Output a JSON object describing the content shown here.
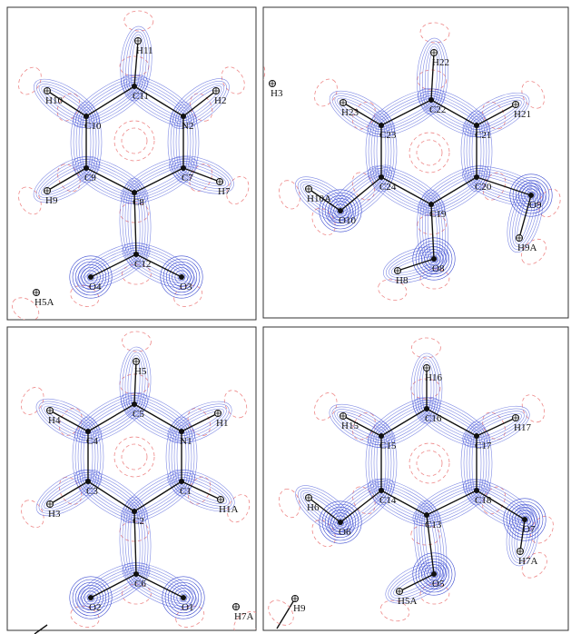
{
  "panels": [
    {
      "atoms": [
        "H11",
        "C11",
        "H2",
        "N2",
        "H10",
        "C10",
        "C9",
        "C7",
        "H9",
        "H7",
        "C8",
        "C12",
        "O4",
        "O3",
        "H5A"
      ]
    },
    {
      "atoms": [
        "H3",
        "H22",
        "C22",
        "H23",
        "H21",
        "C23",
        "C21",
        "C24",
        "C20",
        "H10A",
        "O10",
        "C19",
        "O9",
        "O8",
        "H9A",
        "H8"
      ]
    },
    {
      "atoms": [
        "H5",
        "C5",
        "H4",
        "H1",
        "C4",
        "N1",
        "C3",
        "C1",
        "H3",
        "H1A",
        "C2",
        "C6",
        "O2",
        "O1",
        "H7A"
      ]
    },
    {
      "atoms": [
        "H16",
        "C16",
        "H15",
        "H17",
        "C15",
        "C17",
        "C14",
        "C18",
        "H6",
        "C13",
        "O6",
        "O7",
        "H7A",
        "O5",
        "H5A",
        "H9"
      ]
    }
  ]
}
